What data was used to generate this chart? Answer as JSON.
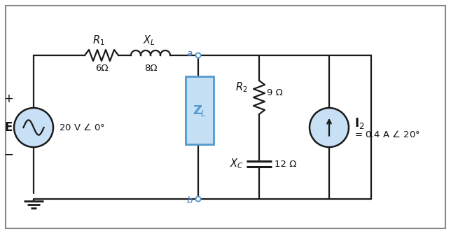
{
  "bg_color": "#ffffff",
  "border_color": "#888888",
  "wire_color": "#1a1a1a",
  "zl_fill": "#c5dff5",
  "zl_border": "#5599cc",
  "source_fill": "#c8e0f5",
  "R1_label": "$R_1$",
  "R1_val": "6Ω",
  "XL_label": "$X_L$",
  "XL_val": "8Ω",
  "R2_label": "$R_2$",
  "R2_val": "9 Ω",
  "XC_label": "$X_C$",
  "XC_val": "12 Ω",
  "ZL_label": "$\\mathbf{Z}_L$",
  "E_label": "\\textbf{E}",
  "E_val": "20 V $\\angle$ 0°",
  "I2_label": "$\\mathbf{I}_2$",
  "I2_val": "= 0.4 A $\\angle$ 20°",
  "node_a": "a",
  "node_b": "b",
  "plus_label": "+",
  "minus_label": "−",
  "figw": 6.44,
  "figh": 3.34,
  "dpi": 100
}
